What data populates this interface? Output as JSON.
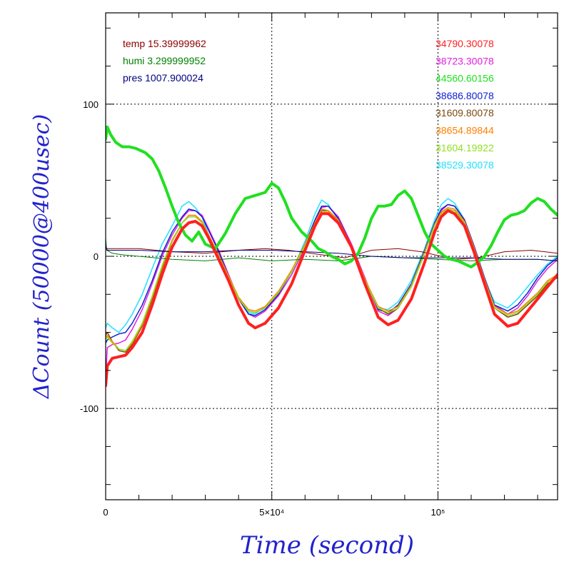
{
  "chart_data": {
    "type": "line",
    "xlabel": "Time (second)",
    "ylabel": "ΔCount (50000@400usec)",
    "xlim": [
      0,
      136000
    ],
    "ylim": [
      -160,
      160
    ],
    "grid": true,
    "x_ticks": [
      {
        "value": 0,
        "label": "0"
      },
      {
        "value": 50000,
        "label": "5×10⁴"
      },
      {
        "value": 100000,
        "label": "10⁵"
      }
    ],
    "y_ticks": [
      {
        "value": 100,
        "label": "100"
      },
      {
        "value": 0,
        "label": "0"
      },
      {
        "value": -100,
        "label": "-100"
      }
    ],
    "env_legend": [
      {
        "label": "temp 15.39999962",
        "color": "#8b0000"
      },
      {
        "label": "humi 3.299999952",
        "color": "#008000"
      },
      {
        "label": "pres 1007.900024",
        "color": "#000080"
      }
    ],
    "legend": [
      {
        "label": "34790.30078",
        "color": "#ff2020"
      },
      {
        "label": "38723.30078",
        "color": "#e020e0"
      },
      {
        "label": "44560.60156",
        "color": "#20e020"
      },
      {
        "label": "38686.80078",
        "color": "#1020d0"
      },
      {
        "label": "31609.80078",
        "color": "#7a4a10"
      },
      {
        "label": "38654.89844",
        "color": "#ff8000"
      },
      {
        "label": "31604.19922",
        "color": "#90e020"
      },
      {
        "label": "38529.30078",
        "color": "#20e0ff"
      }
    ],
    "series": [
      {
        "color": "#20e0ff",
        "width": 1.5,
        "x": [
          0,
          500,
          2000,
          4000,
          6000,
          8000,
          11000,
          14000,
          17000,
          20000,
          23000,
          25000,
          27000,
          29000,
          31000,
          34000,
          37000,
          40000,
          43000,
          45000,
          48000,
          52000,
          56000,
          60000,
          63000,
          65000,
          67000,
          70000,
          74000,
          78000,
          82000,
          85000,
          88000,
          92000,
          96000,
          99000,
          101000,
          103000,
          105000,
          108000,
          111000,
          114000,
          117000,
          121000,
          124000,
          127000,
          130000,
          133000,
          136000
        ],
        "y": [
          -47,
          -44,
          -47,
          -50,
          -45,
          -38,
          -25,
          -8,
          8,
          20,
          33,
          36,
          32,
          26,
          14,
          -2,
          -15,
          -28,
          -37,
          -38,
          -33,
          -24,
          -10,
          10,
          28,
          37,
          34,
          24,
          5,
          -18,
          -34,
          -35,
          -30,
          -16,
          5,
          24,
          34,
          38,
          35,
          24,
          5,
          -15,
          -30,
          -34,
          -28,
          -20,
          -12,
          -5,
          0
        ]
      },
      {
        "color": "#e020e0",
        "width": 1.5,
        "x": [
          0,
          500,
          2000,
          4000,
          6000,
          8000,
          11000,
          14000,
          17000,
          20000,
          23000,
          25000,
          27000,
          29000,
          31000,
          34000,
          37000,
          40000,
          43000,
          45000,
          48000,
          52000,
          56000,
          60000,
          63000,
          65000,
          67000,
          70000,
          74000,
          78000,
          82000,
          85000,
          88000,
          92000,
          96000,
          99000,
          101000,
          103000,
          105000,
          108000,
          111000,
          114000,
          117000,
          121000,
          124000,
          127000,
          130000,
          133000,
          136000
        ],
        "y": [
          -80,
          -60,
          -58,
          -57,
          -55,
          -48,
          -35,
          -18,
          0,
          14,
          25,
          30,
          30,
          27,
          18,
          4,
          -12,
          -28,
          -38,
          -40,
          -36,
          -26,
          -12,
          6,
          22,
          32,
          33,
          26,
          8,
          -14,
          -36,
          -39,
          -34,
          -20,
          2,
          20,
          30,
          34,
          33,
          24,
          6,
          -14,
          -32,
          -38,
          -34,
          -26,
          -16,
          -8,
          -2
        ]
      },
      {
        "color": "#1020d0",
        "width": 1.5,
        "x": [
          0,
          500,
          2000,
          4000,
          6000,
          8000,
          11000,
          14000,
          17000,
          20000,
          23000,
          25000,
          27000,
          29000,
          31000,
          34000,
          37000,
          40000,
          43000,
          45000,
          48000,
          52000,
          56000,
          60000,
          63000,
          65000,
          67000,
          70000,
          74000,
          78000,
          82000,
          85000,
          88000,
          92000,
          96000,
          99000,
          101000,
          103000,
          105000,
          108000,
          111000,
          114000,
          117000,
          121000,
          124000,
          127000,
          130000,
          133000,
          136000
        ],
        "y": [
          -57,
          -55,
          -53,
          -51,
          -50,
          -44,
          -32,
          -16,
          2,
          16,
          26,
          31,
          30,
          26,
          17,
          3,
          -13,
          -28,
          -38,
          -39,
          -35,
          -25,
          -10,
          8,
          24,
          33,
          33,
          25,
          7,
          -15,
          -35,
          -37,
          -32,
          -18,
          4,
          22,
          31,
          34,
          33,
          24,
          6,
          -14,
          -32,
          -36,
          -32,
          -24,
          -14,
          -6,
          -1
        ]
      },
      {
        "color": "#7a4a10",
        "width": 1.5,
        "x": [
          0,
          500,
          2000,
          4000,
          6000,
          8000,
          11000,
          14000,
          17000,
          20000,
          23000,
          25000,
          27000,
          29000,
          31000,
          34000,
          37000,
          40000,
          43000,
          45000,
          48000,
          52000,
          56000,
          60000,
          63000,
          65000,
          67000,
          70000,
          74000,
          78000,
          82000,
          85000,
          88000,
          92000,
          96000,
          99000,
          101000,
          103000,
          105000,
          108000,
          111000,
          114000,
          117000,
          121000,
          124000,
          127000,
          130000,
          133000,
          136000
        ],
        "y": [
          -52,
          -50,
          -56,
          -62,
          -63,
          -58,
          -46,
          -28,
          -8,
          10,
          22,
          26,
          26,
          22,
          14,
          0,
          -14,
          -28,
          -36,
          -37,
          -34,
          -24,
          -10,
          8,
          22,
          30,
          30,
          24,
          6,
          -16,
          -34,
          -38,
          -34,
          -20,
          2,
          20,
          28,
          31,
          30,
          22,
          4,
          -16,
          -34,
          -40,
          -38,
          -32,
          -26,
          -18,
          -14
        ]
      },
      {
        "color": "#ff8000",
        "width": 1.5,
        "x": [
          0,
          500,
          2000,
          4000,
          6000,
          8000,
          11000,
          14000,
          17000,
          20000,
          23000,
          25000,
          27000,
          29000,
          31000,
          34000,
          37000,
          40000,
          43000,
          45000,
          48000,
          52000,
          56000,
          60000,
          63000,
          65000,
          67000,
          70000,
          74000,
          78000,
          82000,
          85000,
          88000,
          92000,
          96000,
          99000,
          101000,
          103000,
          105000,
          108000,
          111000,
          114000,
          117000,
          121000,
          124000,
          127000,
          130000,
          133000,
          136000
        ],
        "y": [
          -54,
          -52,
          -56,
          -61,
          -62,
          -57,
          -45,
          -27,
          -7,
          10,
          22,
          27,
          27,
          23,
          14,
          1,
          -13,
          -27,
          -35,
          -36,
          -33,
          -23,
          -9,
          8,
          22,
          31,
          30,
          24,
          7,
          -15,
          -33,
          -36,
          -33,
          -19,
          3,
          21,
          29,
          32,
          31,
          23,
          5,
          -15,
          -33,
          -38,
          -36,
          -30,
          -24,
          -16,
          -12
        ]
      },
      {
        "color": "#90e020",
        "width": 1.5,
        "x": [
          0,
          500,
          2000,
          4000,
          6000,
          8000,
          11000,
          14000,
          17000,
          20000,
          23000,
          25000,
          27000,
          29000,
          31000,
          34000,
          37000,
          40000,
          43000,
          45000,
          48000,
          52000,
          56000,
          60000,
          63000,
          65000,
          67000,
          70000,
          74000,
          78000,
          82000,
          85000,
          88000,
          92000,
          96000,
          99000,
          101000,
          103000,
          105000,
          108000,
          111000,
          114000,
          117000,
          121000,
          124000,
          127000,
          130000,
          133000,
          136000
        ],
        "y": [
          -55,
          -53,
          -57,
          -61,
          -62,
          -56,
          -44,
          -26,
          -6,
          11,
          22,
          26,
          26,
          22,
          13,
          0,
          -14,
          -28,
          -36,
          -37,
          -34,
          -24,
          -10,
          7,
          21,
          29,
          29,
          23,
          6,
          -16,
          -34,
          -37,
          -34,
          -20,
          2,
          20,
          28,
          31,
          30,
          22,
          4,
          -16,
          -34,
          -39,
          -37,
          -31,
          -25,
          -17,
          -13
        ]
      },
      {
        "color": "#8b0000",
        "width": 1,
        "x": [
          0,
          10000,
          20000,
          30000,
          40000,
          48000,
          55000,
          65000,
          72000,
          80000,
          88000,
          95000,
          105000,
          112000,
          120000,
          128000,
          136000
        ],
        "y": [
          5,
          5,
          3,
          2,
          4,
          5,
          4,
          1,
          -1,
          4,
          5,
          3,
          -2,
          -1,
          3,
          4,
          2
        ]
      },
      {
        "color": "#008000",
        "width": 1,
        "x": [
          0,
          300,
          2000,
          5000,
          10000,
          20000,
          30000,
          40000,
          50000,
          60000,
          70000,
          80000,
          90000,
          100000,
          110000,
          120000,
          130000,
          136000
        ],
        "y": [
          12,
          4,
          2,
          1,
          0,
          -2,
          -3,
          -1,
          -3,
          -2,
          -3,
          0,
          -1,
          -2,
          -3,
          -2,
          -2,
          -3
        ]
      },
      {
        "color": "#000080",
        "width": 1,
        "x": [
          0,
          500,
          10000,
          20000,
          30000,
          40000,
          50000,
          60000,
          70000,
          80000,
          90000,
          100000,
          110000,
          120000,
          130000,
          136000
        ],
        "y": [
          7,
          4,
          4,
          3,
          3,
          4,
          4,
          3,
          2,
          0,
          -1,
          -1,
          -1,
          -2,
          -2,
          -3
        ]
      },
      {
        "color": "#20e020",
        "width": 4,
        "x": [
          0,
          500,
          1500,
          3000,
          5000,
          7000,
          9000,
          12000,
          14000,
          16000,
          18000,
          20000,
          22000,
          24000,
          26000,
          28000,
          30000,
          33000,
          36000,
          39000,
          42000,
          45000,
          48000,
          50000,
          52000,
          54000,
          56000,
          59000,
          62000,
          64000,
          66000,
          68000,
          70000,
          72000,
          74000,
          76000,
          78000,
          80000,
          82000,
          84000,
          86000,
          88000,
          90000,
          92000,
          94000,
          96000,
          98000,
          100000,
          102000,
          104000,
          106000,
          108000,
          110000,
          112000,
          114000,
          116000,
          118000,
          120000,
          122000,
          124000,
          126000,
          128000,
          130000,
          132000,
          134000,
          136000
        ],
        "y": [
          77,
          85,
          80,
          75,
          72,
          72,
          71,
          68,
          64,
          56,
          45,
          33,
          22,
          14,
          10,
          16,
          8,
          5,
          15,
          28,
          38,
          40,
          42,
          48,
          45,
          36,
          25,
          16,
          10,
          5,
          3,
          0,
          -2,
          -5,
          -3,
          2,
          12,
          25,
          33,
          33,
          34,
          40,
          43,
          38,
          27,
          16,
          8,
          4,
          0,
          -2,
          -3,
          -5,
          -7,
          -4,
          0,
          7,
          16,
          24,
          27,
          28,
          30,
          35,
          38,
          36,
          31,
          27
        ]
      },
      {
        "color": "#ff2020",
        "width": 4,
        "x": [
          0,
          500,
          2000,
          4000,
          6000,
          8000,
          11000,
          14000,
          17000,
          20000,
          23000,
          25000,
          27000,
          29000,
          31000,
          34000,
          37000,
          40000,
          43000,
          45000,
          48000,
          52000,
          56000,
          60000,
          63000,
          65000,
          67000,
          70000,
          74000,
          78000,
          82000,
          85000,
          88000,
          92000,
          96000,
          99000,
          101000,
          103000,
          105000,
          108000,
          111000,
          114000,
          117000,
          121000,
          124000,
          127000,
          130000,
          133000,
          136000
        ],
        "y": [
          -85,
          -72,
          -67,
          -66,
          -65,
          -60,
          -50,
          -32,
          -12,
          6,
          18,
          22,
          23,
          20,
          12,
          -2,
          -16,
          -32,
          -44,
          -47,
          -44,
          -34,
          -18,
          4,
          20,
          28,
          28,
          22,
          6,
          -18,
          -40,
          -45,
          -42,
          -28,
          -4,
          16,
          26,
          30,
          28,
          20,
          2,
          -18,
          -38,
          -46,
          -44,
          -36,
          -28,
          -20,
          -12
        ]
      }
    ]
  }
}
